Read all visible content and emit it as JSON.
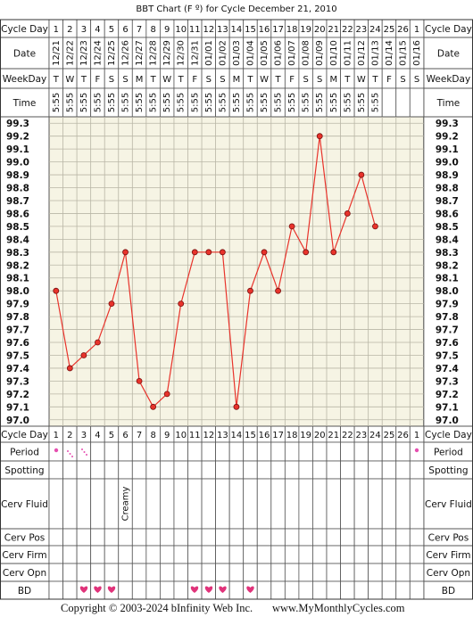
{
  "chart_data": {
    "type": "line",
    "title": "BBT Chart (F º) for Cycle December 21, 2010",
    "row_labels": [
      "Cycle Day",
      "Date",
      "WeekDay",
      "Time",
      "Cycle Day",
      "Period",
      "Spotting",
      "Cerv Fluid",
      "Cerv Pos",
      "Cerv Firm",
      "Cerv Opn",
      "BD"
    ],
    "categories": [
      "1",
      "2",
      "3",
      "4",
      "5",
      "6",
      "7",
      "8",
      "9",
      "10",
      "11",
      "12",
      "13",
      "14",
      "15",
      "16",
      "17",
      "18",
      "19",
      "20",
      "21",
      "22",
      "23",
      "24",
      "25",
      "26",
      "1"
    ],
    "dates": [
      "12/21",
      "12/22",
      "12/23",
      "12/24",
      "12/25",
      "12/26",
      "12/27",
      "12/28",
      "12/29",
      "12/30",
      "12/31",
      "01/01",
      "01/02",
      "01/03",
      "01/04",
      "01/05",
      "01/06",
      "01/07",
      "01/08",
      "01/09",
      "01/10",
      "01/11",
      "01/12",
      "01/13",
      "01/14",
      "01/15",
      "01/16"
    ],
    "weekdays": [
      "T",
      "W",
      "T",
      "F",
      "S",
      "S",
      "M",
      "T",
      "W",
      "T",
      "F",
      "S",
      "S",
      "M",
      "T",
      "W",
      "T",
      "F",
      "S",
      "S",
      "M",
      "T",
      "W",
      "T",
      "F",
      "S",
      "S"
    ],
    "times": [
      "5:55",
      "5:55",
      "5:55",
      "5:55",
      "5:55",
      "5:55",
      "5:55",
      "5:55",
      "5:55",
      "5:55",
      "5:55",
      "5:55",
      "5:55",
      "5:55",
      "5:55",
      "5:55",
      "5:55",
      "5:55",
      "5:55",
      "5:55",
      "5:55",
      "5:55",
      "5:55",
      "5:55",
      null,
      null,
      null
    ],
    "cerv_fluid": [
      null,
      null,
      null,
      null,
      null,
      "Creamy",
      null,
      null,
      null,
      null,
      null,
      null,
      null,
      null,
      null,
      null,
      null,
      null,
      null,
      null,
      null,
      null,
      null,
      null,
      null,
      null,
      null
    ],
    "series": [
      {
        "name": "BBT",
        "color": "#e8332b",
        "values": [
          98.0,
          97.4,
          97.5,
          97.6,
          97.9,
          98.3,
          97.3,
          97.1,
          97.2,
          97.9,
          98.3,
          98.3,
          98.3,
          97.1,
          98.0,
          98.3,
          98.0,
          98.5,
          98.3,
          99.2,
          98.3,
          98.6,
          98.9,
          98.5,
          null,
          null,
          null
        ]
      }
    ],
    "ylim": [
      96.95,
      99.35
    ],
    "yticks": [
      {
        "value": 97,
        "label": "97.0"
      },
      97.1,
      97.2,
      97.3,
      97.4,
      97.5,
      97.6,
      97.7,
      97.8,
      97.9,
      {
        "value": 98,
        "label": "98.0"
      },
      98.1,
      98.2,
      98.3,
      98.4,
      98.5,
      98.6,
      98.7,
      98.8,
      98.9,
      {
        "value": 99,
        "label": "99.0"
      },
      99.1,
      99.2,
      99.3
    ],
    "grid": true,
    "footer": [
      "Copyright © 2003-2024 bInfinity Web Inc.",
      "www.MyMonthlyCycles.com"
    ]
  }
}
